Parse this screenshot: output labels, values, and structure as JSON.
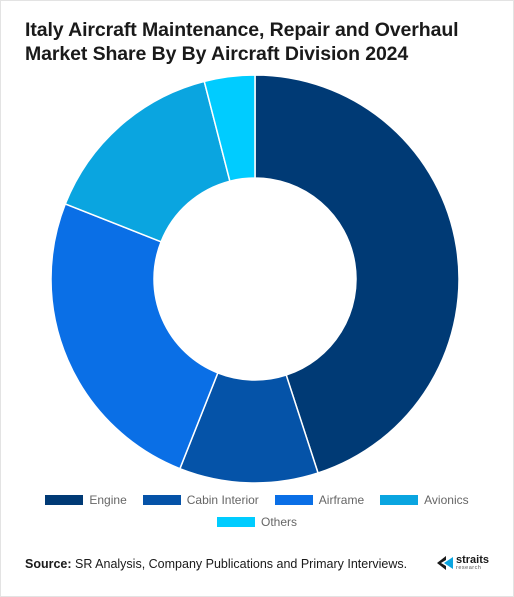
{
  "chart_data": {
    "type": "pie",
    "title": "Italy Aircraft Maintenance, Repair and Overhaul Market Share By By Aircraft Division 2024",
    "donut": true,
    "categories": [
      "Engine",
      "Cabin Interior",
      "Airframe",
      "Avionics",
      "Others"
    ],
    "values": [
      45,
      11,
      25,
      15,
      4
    ],
    "colors": [
      "#003a75",
      "#0553a8",
      "#0a6fe6",
      "#0aa5e0",
      "#00ccff"
    ],
    "legend_position": "bottom"
  },
  "source": {
    "label": "Source:",
    "text": " SR Analysis, Company Publications and Primary Interviews."
  },
  "logo": {
    "name": "straits",
    "sub": "research",
    "icon": "straits-logo-icon"
  }
}
